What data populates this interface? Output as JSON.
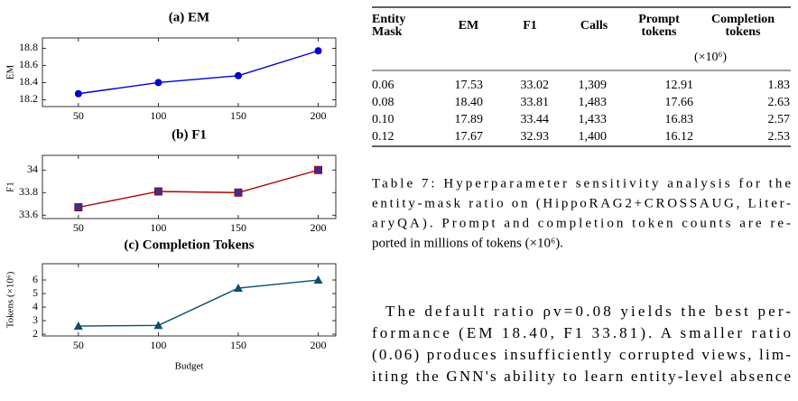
{
  "chart_data": [
    {
      "type": "line",
      "title": "(a) EM",
      "ylabel": "EM",
      "x": [
        50,
        100,
        150,
        200
      ],
      "series": [
        {
          "name": "EM",
          "color": "#0000cc",
          "marker": "circle",
          "marker_color": "#0000cc",
          "values": [
            18.27,
            18.4,
            18.48,
            18.77
          ]
        }
      ],
      "xlim": [
        27.5,
        211
      ],
      "xticks": [
        50,
        100,
        150,
        200
      ],
      "ylim": [
        18.12,
        18.92
      ],
      "yticks": [
        18.2,
        18.4,
        18.6,
        18.8
      ]
    },
    {
      "type": "line",
      "title": "(b) F1",
      "ylabel": "F1",
      "x": [
        50,
        100,
        150,
        200
      ],
      "series": [
        {
          "name": "F1",
          "color": "#b00000",
          "marker": "square",
          "marker_color": "#3030a0",
          "values": [
            33.67,
            33.81,
            33.8,
            34.0
          ]
        }
      ],
      "xlim": [
        27.5,
        211
      ],
      "xticks": [
        50,
        100,
        150,
        200
      ],
      "ylim": [
        33.57,
        34.13
      ],
      "yticks": [
        33.6,
        33.8,
        34
      ]
    },
    {
      "type": "line",
      "title": "(c) Completion Tokens",
      "ylabel": "Tokens (×10⁶)",
      "xlabel": "Budget",
      "x": [
        50,
        100,
        150,
        200
      ],
      "series": [
        {
          "name": "Completion Tokens",
          "color": "#0b4f6c",
          "marker": "triangle",
          "marker_color": "#0b4f6c",
          "values": [
            2.6,
            2.65,
            5.4,
            6.0
          ]
        }
      ],
      "xlim": [
        27.5,
        211
      ],
      "xticks": [
        50,
        100,
        150,
        200
      ],
      "ylim": [
        1.87,
        7.2
      ],
      "yticks": [
        2,
        3,
        4,
        5,
        6
      ]
    }
  ],
  "table": {
    "columns": [
      [
        "Entity",
        "Mask"
      ],
      [
        "EM"
      ],
      [
        "F1"
      ],
      [
        "Calls"
      ],
      [
        "Prompt",
        "tokens"
      ],
      [
        "Completion",
        "tokens"
      ]
    ],
    "unit_note": "(×10⁶)",
    "rows": [
      [
        "0.06",
        "17.53",
        "33.02",
        "1,309",
        "12.91",
        "1.83"
      ],
      [
        "0.08",
        "18.40",
        "33.81",
        "1,483",
        "17.66",
        "2.63"
      ],
      [
        "0.10",
        "17.89",
        "33.44",
        "1,433",
        "16.83",
        "2.57"
      ],
      [
        "0.12",
        "17.67",
        "32.93",
        "1,400",
        "16.12",
        "2.53"
      ]
    ]
  },
  "caption": [
    "Table 7: Hyperparameter sensitivity analysis for the",
    "entity-mask ratio on (HippoRAG2+CROSSAUG, Liter-",
    "aryQA). Prompt and completion token counts are re-",
    "ported in millions of tokens (×10⁶)."
  ],
  "paragraph": [
    "The default ratio ρv=0.08 yields the best per-",
    "formance (EM 18.40, F1 33.81). A smaller ratio",
    "(0.06) produces insufficiently corrupted views, lim-",
    "iting the GNN's ability to learn entity-level absence"
  ]
}
